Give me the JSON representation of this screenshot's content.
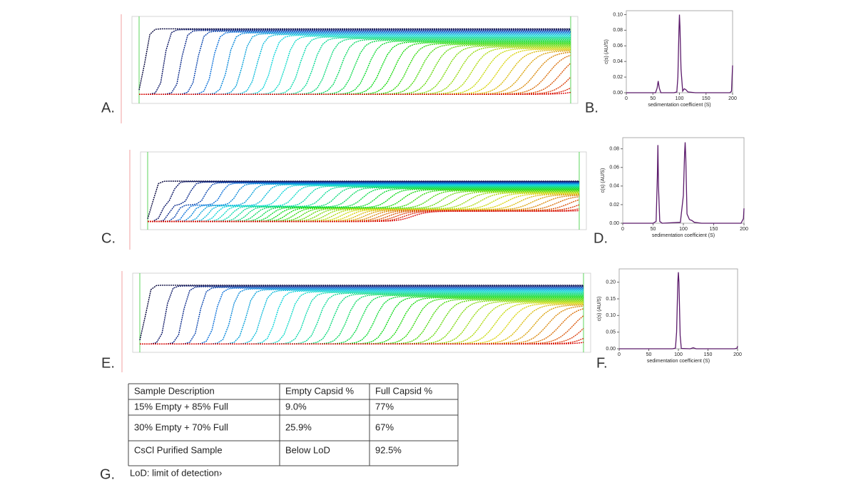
{
  "chart_data": [
    {
      "type": "line",
      "xlabel": "sedimentation coefficient (S)",
      "ylabel": "c(s) (AU/S)",
      "color": "#5b1a6b",
      "x": [
        0,
        40,
        55,
        58,
        60,
        62,
        65,
        90,
        95,
        97,
        99,
        100,
        101,
        103,
        106,
        109,
        112,
        116,
        130,
        195,
        198,
        199,
        200
      ],
      "values": [
        0,
        0,
        0,
        0.006,
        0.015,
        0.006,
        0,
        0,
        0.001,
        0.02,
        0.08,
        0.1,
        0.085,
        0.03,
        0.002,
        0.005,
        0.004,
        0.001,
        0,
        0,
        0.002,
        0.02,
        0.035
      ],
      "xlim": [
        0,
        200
      ],
      "ylim": [
        0,
        0.105
      ],
      "xticks": [
        0,
        50,
        100,
        150,
        200
      ],
      "yticks": [
        {
          "value": 0,
          "label": "0.00"
        },
        {
          "value": 0.02,
          "label": "0.02"
        },
        {
          "value": 0.04,
          "label": "0.04"
        },
        {
          "value": 0.06,
          "label": "0.06"
        },
        {
          "value": 0.08,
          "label": "0.08"
        },
        {
          "value": 0.1,
          "label": "0.10"
        }
      ]
    },
    {
      "type": "line",
      "xlabel": "sedimentation coefficient (S)",
      "ylabel": "c(s) (AU/S)",
      "color": "#5b1a6b",
      "x": [
        0,
        50,
        55,
        57,
        58,
        59,
        61,
        65,
        95,
        100,
        102,
        103,
        104,
        106,
        110,
        114,
        118,
        130,
        195,
        199,
        200
      ],
      "values": [
        0,
        0,
        0.002,
        0.05,
        0.084,
        0.04,
        0.002,
        0,
        0.001,
        0.03,
        0.075,
        0.087,
        0.07,
        0.01,
        0.004,
        0.003,
        0.001,
        0,
        0,
        0.005,
        0.016
      ],
      "xlim": [
        0,
        200
      ],
      "ylim": [
        0,
        0.092
      ],
      "xticks": [
        0,
        50,
        100,
        150,
        200
      ],
      "yticks": [
        {
          "value": 0,
          "label": "0.00"
        },
        {
          "value": 0.02,
          "label": "0.02"
        },
        {
          "value": 0.04,
          "label": "0.04"
        },
        {
          "value": 0.06,
          "label": "0.06"
        },
        {
          "value": 0.08,
          "label": "0.08"
        }
      ]
    },
    {
      "type": "line",
      "xlabel": "sedimentation coefficient (S)",
      "ylabel": "c(s) (AU/S)",
      "color": "#5b1a6b",
      "x": [
        0,
        90,
        95,
        97,
        99,
        100,
        101,
        103,
        105,
        120,
        125,
        130,
        195,
        199,
        200
      ],
      "values": [
        0,
        0,
        0.002,
        0.05,
        0.2,
        0.23,
        0.2,
        0.04,
        0.001,
        0,
        0.003,
        0,
        0,
        0.002,
        0.008
      ],
      "xlim": [
        0,
        200
      ],
      "ylim": [
        0,
        0.24
      ],
      "xticks": [
        0,
        50,
        100,
        150,
        200
      ],
      "yticks": [
        {
          "value": 0,
          "label": "0.00"
        },
        {
          "value": 0.05,
          "label": "0.05"
        },
        {
          "value": 0.1,
          "label": "0.10"
        },
        {
          "value": 0.15,
          "label": "0.15"
        },
        {
          "value": 0.2,
          "label": "0.20"
        }
      ]
    }
  ],
  "panel_labels": [
    "A.",
    "B.",
    "C.",
    "D.",
    "E.",
    "F.",
    "G."
  ],
  "table": {
    "header": [
      "Sample Description",
      "Empty Capsid %",
      "Full Capsid %"
    ],
    "rows": [
      [
        "15% Empty + 85% Full",
        "9.0%",
        "77%"
      ],
      [
        "30% Empty + 70% Full",
        "25.9%",
        "67%"
      ],
      [
        "CsCl Purified Sample",
        "Below LoD",
        "92.5%"
      ]
    ],
    "footnote": "LoD: limit of detection›"
  }
}
